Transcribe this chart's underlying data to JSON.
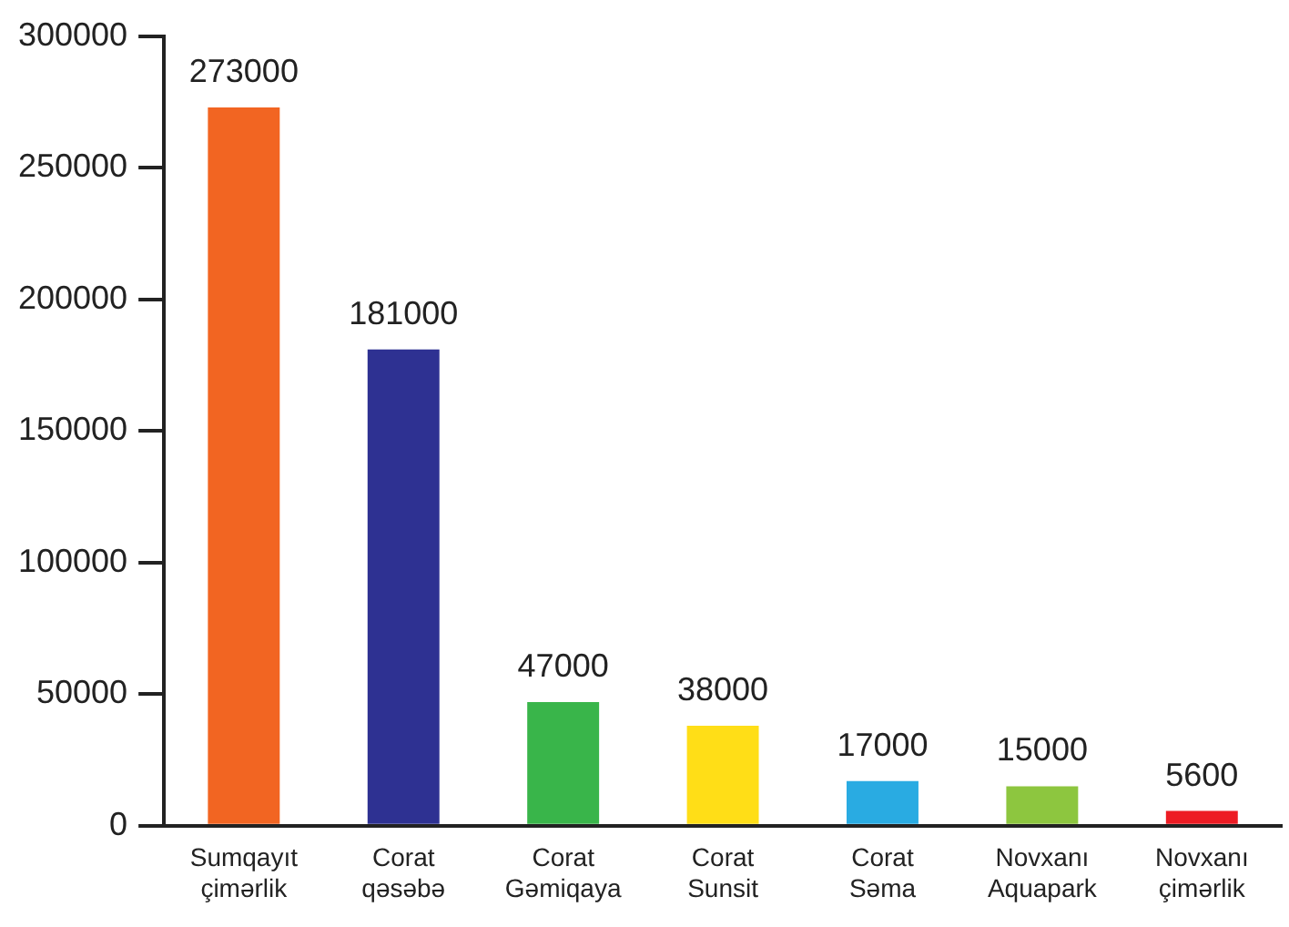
{
  "chart_data": {
    "type": "bar",
    "categories": [
      "Sumqayıt çimərlik",
      "Corat qəsəbə",
      "Corat Gəmiqaya",
      "Corat Sunsit",
      "Corat Səma",
      "Novxanı Aquapark",
      "Novxanı çimərlik"
    ],
    "values": [
      273000,
      181000,
      47000,
      38000,
      17000,
      15000,
      5600
    ],
    "colors": [
      "#f26522",
      "#2e3192",
      "#39b54a",
      "#ffde17",
      "#29abe2",
      "#8dc63f",
      "#ed1c24"
    ],
    "ylim": [
      0,
      300000
    ],
    "yticks": [
      0,
      50000,
      100000,
      150000,
      200000,
      250000,
      300000
    ],
    "data_labels": true,
    "grid": false,
    "legend": false
  }
}
